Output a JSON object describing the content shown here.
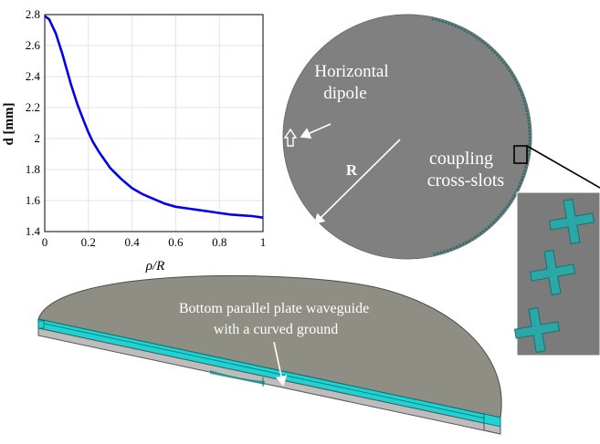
{
  "chart_data": {
    "type": "line",
    "xlabel": "ρ/R",
    "ylabel": "d [mm]",
    "xlim": [
      0,
      1
    ],
    "ylim": [
      1.4,
      2.8
    ],
    "xticks": [
      "0",
      "0.2",
      "0.4",
      "0.6",
      "0.8",
      "1"
    ],
    "yticks": [
      "1.4",
      "1.6",
      "1.8",
      "2",
      "2.2",
      "2.4",
      "2.6",
      "2.8"
    ],
    "grid": true,
    "series": [
      {
        "color": "#0000ee",
        "x": [
          0,
          0.02,
          0.05,
          0.08,
          0.1,
          0.12,
          0.15,
          0.18,
          0.2,
          0.22,
          0.25,
          0.3,
          0.35,
          0.4,
          0.45,
          0.5,
          0.55,
          0.6,
          0.65,
          0.7,
          0.75,
          0.8,
          0.85,
          0.9,
          0.95,
          1.0
        ],
        "y": [
          2.79,
          2.77,
          2.68,
          2.55,
          2.45,
          2.35,
          2.22,
          2.11,
          2.04,
          1.98,
          1.91,
          1.81,
          1.74,
          1.68,
          1.64,
          1.61,
          1.58,
          1.56,
          1.55,
          1.54,
          1.53,
          1.52,
          1.51,
          1.505,
          1.5,
          1.49
        ]
      }
    ]
  },
  "labels": {
    "horizontal_dipole_line1": "Horizontal",
    "horizontal_dipole_line2": "dipole",
    "radius": "R",
    "coupling_line1": "coupling",
    "coupling_line2": "cross-slots",
    "waveguide_line1": "Bottom parallel plate waveguide",
    "waveguide_line2": "with a curved ground"
  },
  "colors": {
    "disc_gray": "#808080",
    "cyan_layer": "#1fd3d3",
    "slot_teal": "#2aa7a6",
    "zoom_bg": "#7b7b7b",
    "half_disc": "#8e8e84"
  }
}
